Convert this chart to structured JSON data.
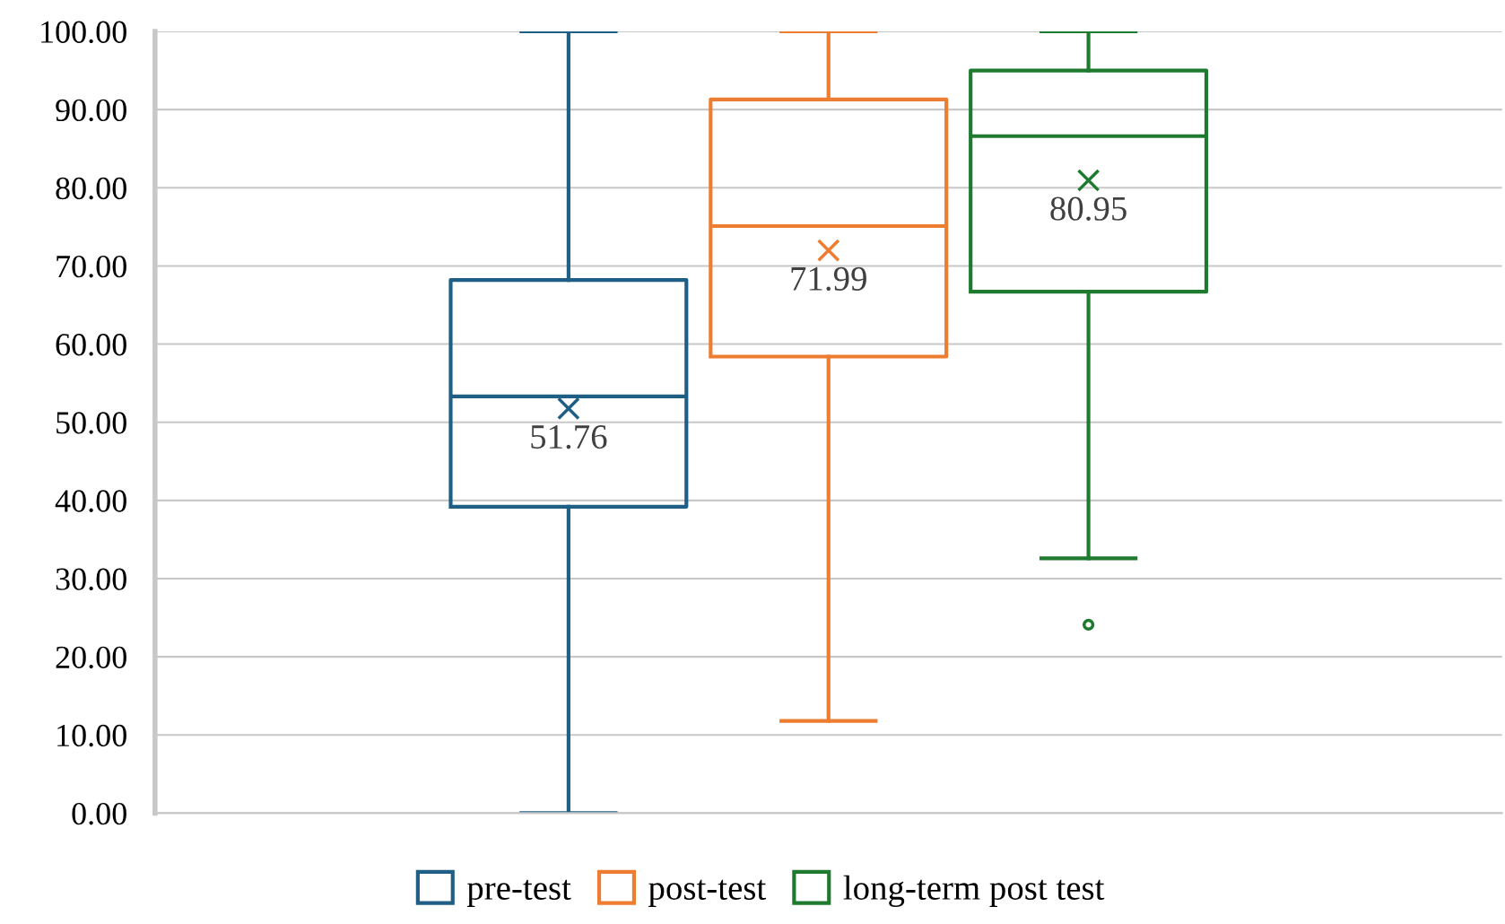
{
  "chart_data": {
    "type": "box",
    "categories": [
      null
    ],
    "series": [
      {
        "name": "pre-test",
        "color": "#1f5f85",
        "value_labels": [
          "51.76"
        ],
        "boxes": [
          {
            "low": 0,
            "q1": 39.2,
            "median": 53.3,
            "q3": 68.2,
            "high": 100,
            "mean": 51.76
          }
        ]
      },
      {
        "name": "post-test",
        "color": "#ed7d31",
        "value_labels": [
          "71.99"
        ],
        "boxes": [
          {
            "low": 11.8,
            "q1": 58.4,
            "median": 75.1,
            "q3": 91.3,
            "high": 100,
            "mean": 71.99
          }
        ]
      },
      {
        "name": "long-term post test",
        "color": "#1e7a2e",
        "value_labels": [
          "80.95"
        ],
        "boxes": [
          {
            "low": 32.6,
            "q1": 66.7,
            "median": 86.6,
            "q3": 95.0,
            "high": 100,
            "mean": 80.95,
            "outliers": [
              24.1
            ]
          }
        ]
      }
    ],
    "ylim": [
      0,
      100
    ],
    "yticks": [
      {
        "value": 0,
        "label": "0.00"
      },
      {
        "value": 10,
        "label": "10.00"
      },
      {
        "value": 20,
        "label": "20.00"
      },
      {
        "value": 30,
        "label": "30.00"
      },
      {
        "value": 40,
        "label": "40.00"
      },
      {
        "value": 50,
        "label": "50.00"
      },
      {
        "value": 60,
        "label": "60.00"
      },
      {
        "value": 70,
        "label": "70.00"
      },
      {
        "value": 80,
        "label": "80.00"
      },
      {
        "value": 90,
        "label": "90.00"
      },
      {
        "value": 100,
        "label": "100.00"
      }
    ],
    "grid": "y",
    "legend": "bottom"
  }
}
